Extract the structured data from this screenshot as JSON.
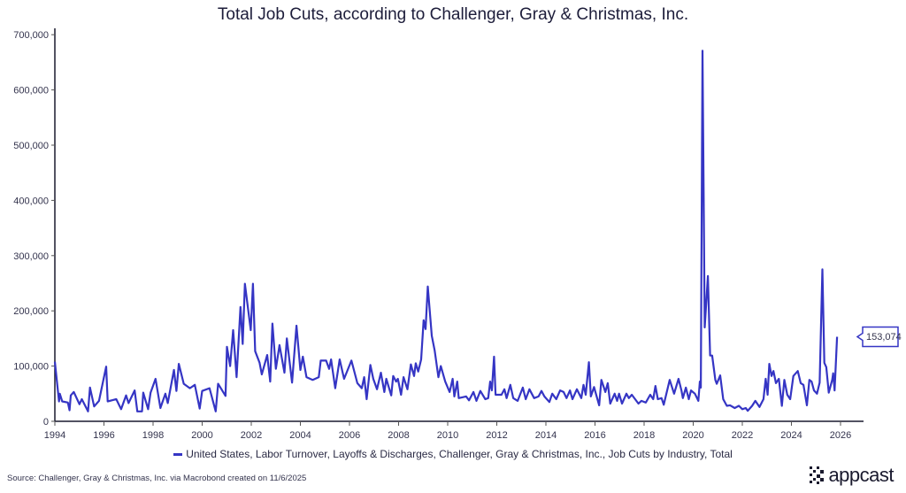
{
  "chart_data": {
    "type": "line",
    "title": "Total Job Cuts, according to Challenger, Gray & Christmas, Inc.",
    "xlabel": "",
    "ylabel": "",
    "xlim": [
      1994,
      2026.5
    ],
    "ylim": [
      0,
      700000
    ],
    "x_ticks": [
      "1994",
      "1996",
      "1998",
      "2000",
      "2002",
      "2004",
      "2006",
      "2008",
      "2010",
      "2012",
      "2014",
      "2016",
      "2018",
      "2020",
      "2022",
      "2024",
      "2026"
    ],
    "y_ticks": [
      "0",
      "100,000",
      "200,000",
      "300,000",
      "400,000",
      "500,000",
      "600,000",
      "700,000"
    ],
    "grid": false,
    "legend_placement": "bottom",
    "last_value_label": "153,074",
    "series": [
      {
        "name": "United States, Labor Turnover, Layoffs & Discharges, Challenger, Gray & Christmas, Inc., Job Cuts by Industry, Total",
        "color": "#3535c4",
        "points": [
          [
            1994.0,
            108000
          ],
          [
            1994.17,
            36000
          ],
          [
            1994.2,
            50000
          ],
          [
            1994.3,
            36000
          ],
          [
            1994.53,
            34000
          ],
          [
            1994.6,
            20000
          ],
          [
            1994.65,
            47000
          ],
          [
            1994.77,
            53000
          ],
          [
            1995.0,
            31000
          ],
          [
            1995.1,
            40000
          ],
          [
            1995.35,
            18000
          ],
          [
            1995.43,
            61000
          ],
          [
            1995.6,
            27000
          ],
          [
            1995.8,
            37000
          ],
          [
            1996.09,
            99000
          ],
          [
            1996.15,
            36000
          ],
          [
            1996.5,
            40000
          ],
          [
            1996.7,
            22000
          ],
          [
            1996.9,
            47000
          ],
          [
            1997.0,
            33000
          ],
          [
            1997.25,
            56000
          ],
          [
            1997.36,
            18000
          ],
          [
            1997.55,
            18000
          ],
          [
            1997.6,
            52000
          ],
          [
            1997.8,
            22000
          ],
          [
            1997.9,
            52000
          ],
          [
            1998.1,
            77000
          ],
          [
            1998.3,
            24000
          ],
          [
            1998.5,
            50000
          ],
          [
            1998.6,
            33000
          ],
          [
            1998.85,
            93000
          ],
          [
            1998.95,
            55000
          ],
          [
            1999.05,
            104000
          ],
          [
            1999.25,
            68000
          ],
          [
            1999.5,
            60000
          ],
          [
            1999.7,
            66000
          ],
          [
            1999.9,
            23000
          ],
          [
            2000.0,
            55000
          ],
          [
            2000.3,
            60000
          ],
          [
            2000.55,
            18000
          ],
          [
            2000.65,
            68000
          ],
          [
            2000.95,
            46000
          ],
          [
            2001.01,
            135000
          ],
          [
            2001.14,
            100000
          ],
          [
            2001.26,
            165000
          ],
          [
            2001.4,
            80000
          ],
          [
            2001.56,
            207000
          ],
          [
            2001.65,
            140000
          ],
          [
            2001.74,
            249000
          ],
          [
            2001.98,
            165000
          ],
          [
            2002.07,
            249000
          ],
          [
            2002.16,
            127000
          ],
          [
            2002.34,
            106000
          ],
          [
            2002.43,
            85000
          ],
          [
            2002.65,
            120000
          ],
          [
            2002.77,
            72000
          ],
          [
            2002.86,
            177000
          ],
          [
            2003.0,
            95000
          ],
          [
            2003.15,
            138000
          ],
          [
            2003.35,
            88000
          ],
          [
            2003.45,
            150000
          ],
          [
            2003.66,
            70000
          ],
          [
            2003.84,
            173000
          ],
          [
            2004.0,
            93000
          ],
          [
            2004.1,
            117000
          ],
          [
            2004.25,
            80000
          ],
          [
            2004.5,
            75000
          ],
          [
            2004.75,
            80000
          ],
          [
            2004.83,
            110000
          ],
          [
            2005.05,
            110000
          ],
          [
            2005.17,
            95000
          ],
          [
            2005.25,
            112000
          ],
          [
            2005.42,
            60000
          ],
          [
            2005.6,
            112000
          ],
          [
            2005.78,
            77000
          ],
          [
            2006.08,
            110000
          ],
          [
            2006.32,
            69000
          ],
          [
            2006.5,
            60000
          ],
          [
            2006.6,
            80000
          ],
          [
            2006.7,
            40000
          ],
          [
            2006.85,
            102000
          ],
          [
            2006.97,
            77000
          ],
          [
            2007.12,
            58000
          ],
          [
            2007.28,
            88000
          ],
          [
            2007.42,
            53000
          ],
          [
            2007.5,
            77000
          ],
          [
            2007.7,
            47000
          ],
          [
            2007.78,
            82000
          ],
          [
            2007.9,
            72000
          ],
          [
            2007.97,
            77000
          ],
          [
            2008.1,
            48000
          ],
          [
            2008.2,
            80000
          ],
          [
            2008.36,
            58000
          ],
          [
            2008.5,
            103000
          ],
          [
            2008.63,
            82000
          ],
          [
            2008.7,
            105000
          ],
          [
            2008.8,
            90000
          ],
          [
            2008.92,
            112000
          ],
          [
            2009.02,
            183000
          ],
          [
            2009.1,
            167000
          ],
          [
            2009.19,
            244000
          ],
          [
            2009.35,
            155000
          ],
          [
            2009.47,
            128000
          ],
          [
            2009.62,
            80000
          ],
          [
            2009.72,
            100000
          ],
          [
            2009.9,
            72000
          ],
          [
            2010.08,
            53000
          ],
          [
            2010.2,
            77000
          ],
          [
            2010.27,
            45000
          ],
          [
            2010.39,
            72000
          ],
          [
            2010.45,
            42000
          ],
          [
            2010.75,
            45000
          ],
          [
            2010.87,
            38000
          ],
          [
            2011.05,
            53000
          ],
          [
            2011.17,
            37000
          ],
          [
            2011.33,
            55000
          ],
          [
            2011.53,
            40000
          ],
          [
            2011.65,
            42000
          ],
          [
            2011.73,
            72000
          ],
          [
            2011.8,
            56000
          ],
          [
            2011.89,
            117000
          ],
          [
            2011.95,
            48000
          ],
          [
            2012.19,
            48000
          ],
          [
            2012.31,
            58000
          ],
          [
            2012.4,
            42000
          ],
          [
            2012.55,
            66000
          ],
          [
            2012.67,
            42000
          ],
          [
            2012.85,
            37000
          ],
          [
            2013.06,
            61000
          ],
          [
            2013.18,
            40000
          ],
          [
            2013.33,
            58000
          ],
          [
            2013.52,
            42000
          ],
          [
            2013.7,
            45000
          ],
          [
            2013.82,
            55000
          ],
          [
            2013.94,
            45000
          ],
          [
            2014.14,
            35000
          ],
          [
            2014.26,
            50000
          ],
          [
            2014.42,
            40000
          ],
          [
            2014.58,
            56000
          ],
          [
            2014.72,
            53000
          ],
          [
            2014.84,
            42000
          ],
          [
            2014.98,
            56000
          ],
          [
            2015.08,
            40000
          ],
          [
            2015.26,
            58000
          ],
          [
            2015.44,
            42000
          ],
          [
            2015.53,
            66000
          ],
          [
            2015.62,
            48000
          ],
          [
            2015.75,
            107000
          ],
          [
            2015.83,
            45000
          ],
          [
            2015.96,
            62000
          ],
          [
            2016.17,
            29000
          ],
          [
            2016.26,
            75000
          ],
          [
            2016.42,
            53000
          ],
          [
            2016.52,
            69000
          ],
          [
            2016.62,
            32000
          ],
          [
            2016.8,
            50000
          ],
          [
            2016.9,
            37000
          ],
          [
            2016.98,
            50000
          ],
          [
            2017.1,
            32000
          ],
          [
            2017.28,
            50000
          ],
          [
            2017.38,
            42000
          ],
          [
            2017.5,
            48000
          ],
          [
            2017.77,
            32000
          ],
          [
            2017.89,
            37000
          ],
          [
            2018.07,
            34000
          ],
          [
            2018.25,
            48000
          ],
          [
            2018.37,
            40000
          ],
          [
            2018.46,
            64000
          ],
          [
            2018.56,
            40000
          ],
          [
            2018.71,
            42000
          ],
          [
            2018.8,
            30000
          ],
          [
            2019.04,
            75000
          ],
          [
            2019.22,
            50000
          ],
          [
            2019.4,
            77000
          ],
          [
            2019.52,
            56000
          ],
          [
            2019.58,
            42000
          ],
          [
            2019.7,
            61000
          ],
          [
            2019.82,
            40000
          ],
          [
            2019.91,
            56000
          ],
          [
            2020.07,
            50000
          ],
          [
            2020.21,
            37000
          ],
          [
            2020.27,
            72000
          ],
          [
            2020.31,
            61000
          ],
          [
            2020.38,
            671000
          ],
          [
            2020.47,
            170000
          ],
          [
            2020.6,
            263000
          ],
          [
            2020.69,
            119000
          ],
          [
            2020.77,
            119000
          ],
          [
            2020.9,
            75000
          ],
          [
            2020.96,
            68000
          ],
          [
            2021.1,
            83000
          ],
          [
            2021.22,
            40000
          ],
          [
            2021.37,
            28000
          ],
          [
            2021.5,
            29000
          ],
          [
            2021.69,
            24000
          ],
          [
            2021.86,
            28000
          ],
          [
            2022.0,
            22000
          ],
          [
            2022.14,
            24000
          ],
          [
            2022.22,
            19000
          ],
          [
            2022.4,
            28000
          ],
          [
            2022.53,
            37000
          ],
          [
            2022.7,
            26000
          ],
          [
            2022.86,
            40000
          ],
          [
            2022.95,
            77000
          ],
          [
            2023.03,
            48000
          ],
          [
            2023.1,
            104000
          ],
          [
            2023.19,
            82000
          ],
          [
            2023.27,
            91000
          ],
          [
            2023.37,
            69000
          ],
          [
            2023.49,
            77000
          ],
          [
            2023.61,
            28000
          ],
          [
            2023.71,
            75000
          ],
          [
            2023.83,
            48000
          ],
          [
            2023.95,
            40000
          ],
          [
            2024.08,
            82000
          ],
          [
            2024.26,
            91000
          ],
          [
            2024.38,
            69000
          ],
          [
            2024.49,
            66000
          ],
          [
            2024.63,
            29000
          ],
          [
            2024.73,
            75000
          ],
          [
            2024.82,
            72000
          ],
          [
            2024.92,
            56000
          ],
          [
            2025.04,
            50000
          ],
          [
            2025.15,
            70000
          ],
          [
            2025.26,
            275000
          ],
          [
            2025.34,
            106000
          ],
          [
            2025.42,
            98000
          ],
          [
            2025.52,
            52000
          ],
          [
            2025.66,
            75000
          ],
          [
            2025.7,
            87000
          ],
          [
            2025.76,
            56000
          ],
          [
            2025.86,
            153074
          ]
        ]
      }
    ]
  },
  "footer": {
    "source": "Source: Challenger, Gray & Christmas, Inc. via Macrobond created on 11/6/2025",
    "logo_text": "appcast"
  }
}
